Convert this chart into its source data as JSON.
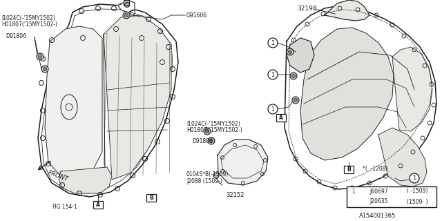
{
  "bg_color": "#ffffff",
  "line_color": "#1a1a1a",
  "text_color": "#1a1a1a",
  "lw": 0.8,
  "labels": {
    "top_left_1": "I1024C(-'15MY1502)",
    "top_left_2": "H01807('15MY1502-)",
    "d91806_left": "D91806",
    "g91606": "G91606",
    "front": "FRONT",
    "fig": "FIG.154-1",
    "label_A": "A",
    "label_B": "B",
    "part_32198": "32198",
    "part_32152": "32152",
    "mid_1": "I1024C(-'15MY1502)",
    "mid_2": "H01807('15MY1502-)",
    "d91806_mid": "D91806",
    "part_01045": "0104S*B(-1509)",
    "j2088": "J2088 (1509-)",
    "j60697": "J60697",
    "j20635": "J20635",
    "range1": "( -1509)",
    "range2": "(1509- )",
    "asterisk": "*(  -1208)",
    "diagram_id": "A154001365"
  }
}
